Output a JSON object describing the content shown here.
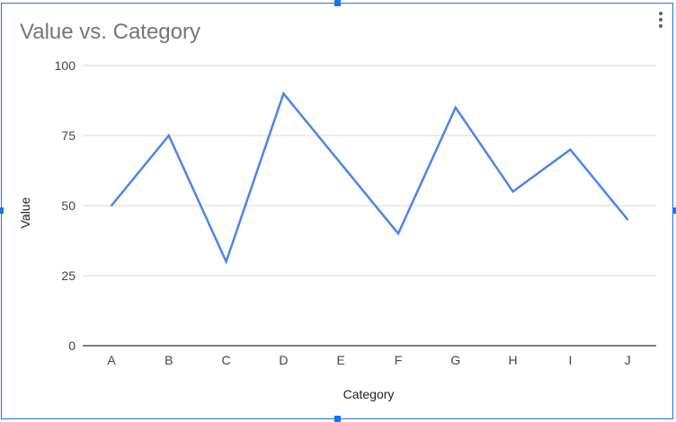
{
  "chart_data": {
    "type": "line",
    "title": "Value vs. Category",
    "xlabel": "Category",
    "ylabel": "Value",
    "categories": [
      "A",
      "B",
      "C",
      "D",
      "E",
      "F",
      "G",
      "H",
      "I",
      "J"
    ],
    "series": [
      {
        "values": [
          50,
          75,
          30,
          90,
          65,
          40,
          85,
          55,
          70,
          45
        ],
        "color": "#4a86e8"
      }
    ],
    "ylim": [
      0,
      100
    ],
    "yticks": [
      0,
      25,
      50,
      75,
      100
    ],
    "grid": true,
    "legend": "none"
  },
  "ui": {
    "menu_icon": "more-vert-icon",
    "selection_color": "#1a73e8"
  }
}
